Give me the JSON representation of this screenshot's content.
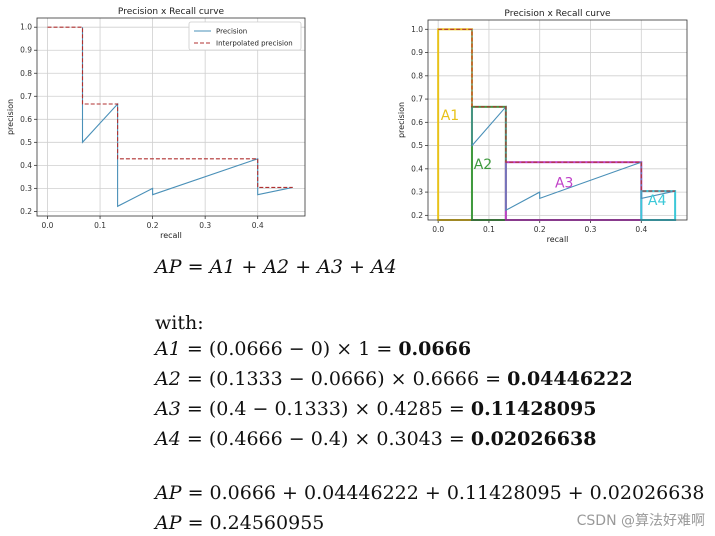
{
  "chart_data": [
    {
      "type": "line",
      "title": "Precision x Recall curve",
      "xlabel": "recall",
      "ylabel": "precision",
      "xlim": [
        -0.02,
        0.49
      ],
      "ylim": [
        0.18,
        1.04
      ],
      "xticks": [
        "0.0",
        "0.1",
        "0.2",
        "0.3",
        "0.4"
      ],
      "yticks": [
        "0.2",
        "0.3",
        "0.4",
        "0.5",
        "0.6",
        "0.7",
        "0.8",
        "0.9",
        "1.0"
      ],
      "grid": true,
      "legend_position": "top-right",
      "series": [
        {
          "name": "Precision",
          "style": "solid",
          "color": "#4a90b8",
          "x": [
            0.0666,
            0.0666,
            0.1333,
            0.1333,
            0.2,
            0.2,
            0.4,
            0.4,
            0.4666
          ],
          "y": [
            1.0,
            0.5,
            0.6666,
            0.2222,
            0.3,
            0.2727,
            0.4285,
            0.2727,
            0.3043
          ]
        },
        {
          "name": "Interpolated precision",
          "style": "dashed",
          "color": "#b03030",
          "x": [
            0.0,
            0.0666,
            0.0666,
            0.1333,
            0.1333,
            0.4,
            0.4,
            0.4666
          ],
          "y": [
            1.0,
            1.0,
            0.6666,
            0.6666,
            0.4285,
            0.4285,
            0.3043,
            0.3043
          ]
        }
      ]
    },
    {
      "type": "line",
      "title": "Precision x Recall curve",
      "xlabel": "recall",
      "ylabel": "precision",
      "xlim": [
        -0.02,
        0.49
      ],
      "ylim": [
        0.18,
        1.04
      ],
      "xticks": [
        "0.0",
        "0.1",
        "0.2",
        "0.3",
        "0.4"
      ],
      "yticks": [
        "0.2",
        "0.3",
        "0.4",
        "0.5",
        "0.6",
        "0.7",
        "0.8",
        "0.9",
        "1.0"
      ],
      "grid": true,
      "series": [
        {
          "name": "",
          "style": "solid",
          "color": "#4a90b8",
          "x": [
            0.0666,
            0.0666,
            0.1333,
            0.1333,
            0.2,
            0.2,
            0.4,
            0.4,
            0.4666
          ],
          "y": [
            1.0,
            0.5,
            0.6666,
            0.2222,
            0.3,
            0.2727,
            0.4285,
            0.2727,
            0.3043
          ]
        },
        {
          "name": "",
          "style": "dashed",
          "color": "#b03030",
          "x": [
            0.0,
            0.0666,
            0.0666,
            0.1333,
            0.1333,
            0.4,
            0.4,
            0.4666
          ],
          "y": [
            1.0,
            1.0,
            0.6666,
            0.6666,
            0.4285,
            0.4285,
            0.3043,
            0.3043
          ]
        }
      ],
      "regions": [
        {
          "label": "A1",
          "x0": 0.0,
          "x1": 0.0666,
          "y": 1.0,
          "color": "#e8c21a"
        },
        {
          "label": "A2",
          "x0": 0.0666,
          "x1": 0.1333,
          "y": 0.6666,
          "color": "#3f9a3f"
        },
        {
          "label": "A3",
          "x0": 0.1333,
          "x1": 0.4,
          "y": 0.4285,
          "color": "#c040c8"
        },
        {
          "label": "A4",
          "x0": 0.4,
          "x1": 0.4666,
          "y": 0.3043,
          "color": "#3cc8d8"
        }
      ]
    }
  ],
  "formulas": {
    "line1": {
      "lhs": "AP",
      "rhs": "A1 + A2 + A3 + A4"
    },
    "with": "with:",
    "a1": {
      "lhs": "A1",
      "expr": "(0.0666 − 0) × 1 =",
      "result": "0.0666"
    },
    "a2": {
      "lhs": "A2",
      "expr": "(0.1333 − 0.0666) × 0.6666 =",
      "result": "0.04446222"
    },
    "a3": {
      "lhs": "A3",
      "expr": "(0.4 − 0.1333) × 0.4285 =",
      "result": "0.11428095"
    },
    "a4": {
      "lhs": "A4",
      "expr": "(0.4666 − 0.4) × 0.3043 =",
      "result": "0.02026638"
    },
    "sum": {
      "lhs": "AP",
      "rhs": "0.0666 + 0.04446222 + 0.11428095 + 0.02026638"
    },
    "final": {
      "lhs": "AP",
      "rhs": "0.24560955"
    }
  },
  "watermark": "CSDN @算法好难啊"
}
